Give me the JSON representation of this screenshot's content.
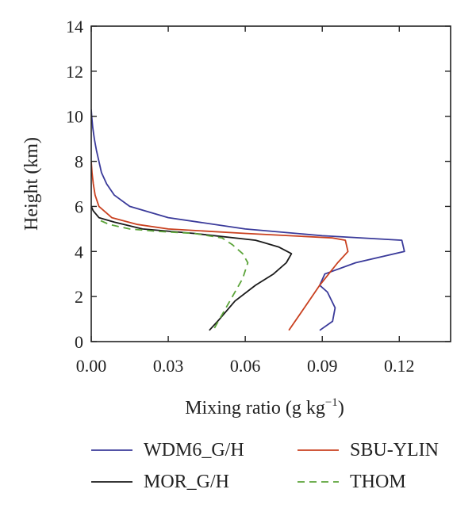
{
  "chart_data": {
    "type": "line",
    "title": "",
    "xlabel": "Mixing ratio (g kg",
    "xlabel_sup": "−1",
    "xlabel_close": ")",
    "ylabel": "Height (km)",
    "xlim": [
      0,
      0.14
    ],
    "ylim": [
      0,
      14
    ],
    "xticks": [
      0,
      0.03,
      0.06,
      0.09,
      0.12
    ],
    "xtick_labels": [
      "0.00",
      "0.03",
      "0.06",
      "0.09",
      "0.12"
    ],
    "yticks": [
      0,
      2,
      4,
      6,
      8,
      10,
      12,
      14
    ],
    "ytick_labels": [
      "0",
      "2",
      "4",
      "6",
      "8",
      "10",
      "12",
      "14"
    ],
    "grid": false,
    "legend_position": "bottom",
    "series": [
      {
        "name": "WDM6_G/H",
        "color": "#3a3a9a",
        "dash": "solid",
        "points": [
          [
            0.089,
            0.5
          ],
          [
            0.094,
            0.9
          ],
          [
            0.095,
            1.5
          ],
          [
            0.092,
            2.2
          ],
          [
            0.089,
            2.5
          ],
          [
            0.091,
            3.0
          ],
          [
            0.103,
            3.5
          ],
          [
            0.122,
            4.0
          ],
          [
            0.121,
            4.5
          ],
          [
            0.09,
            4.7
          ],
          [
            0.06,
            5.0
          ],
          [
            0.03,
            5.5
          ],
          [
            0.015,
            6.0
          ],
          [
            0.009,
            6.5
          ],
          [
            0.006,
            7.0
          ],
          [
            0.004,
            7.5
          ],
          [
            0.003,
            8.0
          ],
          [
            0.002,
            8.5
          ],
          [
            0.0012,
            9.0
          ],
          [
            0.0006,
            9.5
          ],
          [
            0.0002,
            10.0
          ],
          [
            0,
            10.3
          ]
        ]
      },
      {
        "name": "SBU-YLIN",
        "color": "#c9401f",
        "dash": "solid",
        "points": [
          [
            0.077,
            0.5
          ],
          [
            0.083,
            1.5
          ],
          [
            0.089,
            2.5
          ],
          [
            0.096,
            3.5
          ],
          [
            0.1,
            4.0
          ],
          [
            0.099,
            4.5
          ],
          [
            0.094,
            4.6
          ],
          [
            0.06,
            4.8
          ],
          [
            0.03,
            5.0
          ],
          [
            0.018,
            5.2
          ],
          [
            0.008,
            5.5
          ],
          [
            0.003,
            6.0
          ],
          [
            0.0015,
            6.5
          ],
          [
            0.0008,
            7.0
          ],
          [
            0.0003,
            7.5
          ],
          [
            0,
            8.0
          ]
        ]
      },
      {
        "name": "MOR_G/H",
        "color": "#1a1a1a",
        "dash": "solid",
        "points": [
          [
            0.046,
            0.5
          ],
          [
            0.05,
            1.0
          ],
          [
            0.056,
            1.8
          ],
          [
            0.064,
            2.5
          ],
          [
            0.071,
            3.0
          ],
          [
            0.076,
            3.5
          ],
          [
            0.078,
            3.9
          ],
          [
            0.073,
            4.2
          ],
          [
            0.067,
            4.4
          ],
          [
            0.064,
            4.5
          ],
          [
            0.04,
            4.8
          ],
          [
            0.02,
            5.0
          ],
          [
            0.009,
            5.3
          ],
          [
            0.003,
            5.5
          ],
          [
            0.0008,
            5.8
          ],
          [
            0,
            6.0
          ]
        ]
      },
      {
        "name": "THOM",
        "color": "#5ca43a",
        "dash": "dashed",
        "points": [
          [
            0.048,
            0.6
          ],
          [
            0.051,
            1.2
          ],
          [
            0.055,
            2.0
          ],
          [
            0.059,
            2.8
          ],
          [
            0.061,
            3.5
          ],
          [
            0.059,
            3.9
          ],
          [
            0.055,
            4.3
          ],
          [
            0.051,
            4.6
          ],
          [
            0.04,
            4.8
          ],
          [
            0.025,
            4.9
          ],
          [
            0.015,
            5.0
          ],
          [
            0.007,
            5.2
          ],
          [
            0.003,
            5.4
          ]
        ]
      }
    ]
  }
}
